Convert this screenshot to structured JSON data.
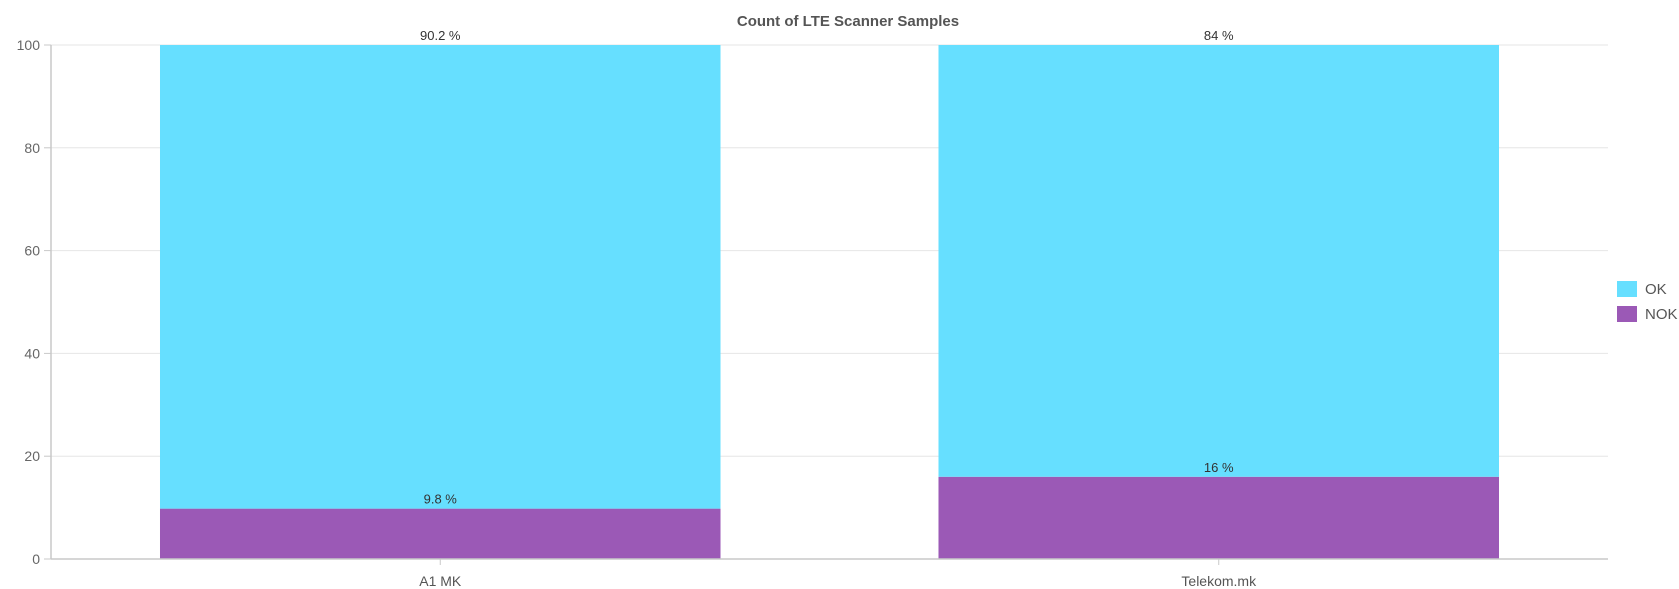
{
  "chart_data": {
    "type": "bar",
    "stacked": true,
    "title": "Count of LTE Scanner Samples",
    "xlabel": "",
    "ylabel": "",
    "ylim": [
      0,
      100
    ],
    "yticks": [
      0,
      20,
      40,
      60,
      80,
      100
    ],
    "categories": [
      "A1 MK",
      "Telekom.mk"
    ],
    "series": [
      {
        "name": "OK",
        "values": [
          90.2,
          84
        ],
        "labels": [
          "90.2 %",
          "84 %"
        ],
        "color": "#66dfff"
      },
      {
        "name": "NOK",
        "values": [
          9.8,
          16
        ],
        "labels": [
          "9.8 %",
          "16 %"
        ],
        "color": "#9b59b6"
      }
    ],
    "grid": true,
    "legend_position": "right"
  }
}
